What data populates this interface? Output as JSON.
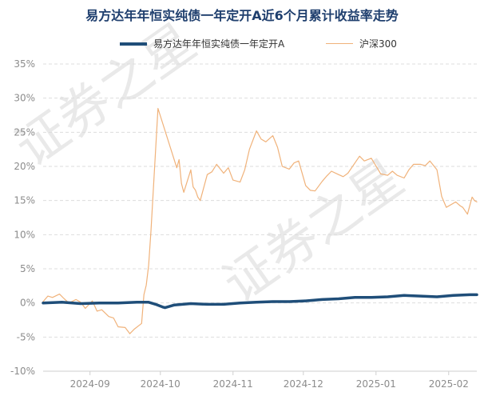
{
  "chart_data": {
    "type": "line",
    "title": "易方达年年恒实纯债一年定开A近6个月累计收益率走势",
    "xlabel": "",
    "ylabel": "",
    "ylim": [
      -10,
      35
    ],
    "yticks": [
      -10,
      -5,
      0,
      5,
      10,
      15,
      20,
      25,
      30,
      35
    ],
    "ytick_labels": [
      "-10%",
      "-5%",
      "0%",
      "5%",
      "10%",
      "15%",
      "20%",
      "25%",
      "30%",
      "35%"
    ],
    "x_categories": [
      "2024-08-12",
      "2025-02-13"
    ],
    "xticks": [
      "2024-09",
      "2024-10",
      "2024-11",
      "2024-12",
      "2025-01",
      "2025-02"
    ],
    "grid": "horizontal dashed",
    "legend_position": "top-center",
    "watermark": [
      "证券之星",
      "证券之星"
    ],
    "series": [
      {
        "name": "易方达年年恒实纯债一年定开A",
        "color": "#1f4e79",
        "points": [
          [
            "2024-08-12",
            0.0
          ],
          [
            "2024-08-20",
            0.1
          ],
          [
            "2024-08-28",
            -0.1
          ],
          [
            "2024-09-05",
            0.0
          ],
          [
            "2024-09-13",
            0.0
          ],
          [
            "2024-09-21",
            0.1
          ],
          [
            "2024-09-26",
            0.1
          ],
          [
            "2024-09-29",
            -0.2
          ],
          [
            "2024-10-02",
            -0.6
          ],
          [
            "2024-10-03",
            -0.7
          ],
          [
            "2024-10-07",
            -0.3
          ],
          [
            "2024-10-14",
            -0.1
          ],
          [
            "2024-10-21",
            -0.2
          ],
          [
            "2024-10-28",
            -0.2
          ],
          [
            "2024-11-04",
            0.0
          ],
          [
            "2024-11-11",
            0.1
          ],
          [
            "2024-11-18",
            0.2
          ],
          [
            "2024-11-25",
            0.2
          ],
          [
            "2024-12-02",
            0.3
          ],
          [
            "2024-12-09",
            0.5
          ],
          [
            "2024-12-16",
            0.6
          ],
          [
            "2024-12-23",
            0.8
          ],
          [
            "2024-12-30",
            0.8
          ],
          [
            "2025-01-06",
            0.9
          ],
          [
            "2025-01-13",
            1.1
          ],
          [
            "2025-01-20",
            1.0
          ],
          [
            "2025-01-27",
            0.9
          ],
          [
            "2025-02-03",
            1.1
          ],
          [
            "2025-02-10",
            1.2
          ],
          [
            "2025-02-13",
            1.2
          ]
        ]
      },
      {
        "name": "沪深300",
        "color": "#f0b27a",
        "points": [
          [
            "2024-08-12",
            0.2
          ],
          [
            "2024-08-14",
            1.0
          ],
          [
            "2024-08-16",
            0.8
          ],
          [
            "2024-08-19",
            1.3
          ],
          [
            "2024-08-21",
            0.6
          ],
          [
            "2024-08-23",
            0.0
          ],
          [
            "2024-08-26",
            0.5
          ],
          [
            "2024-08-28",
            0.1
          ],
          [
            "2024-08-30",
            -0.8
          ],
          [
            "2024-09-02",
            0.3
          ],
          [
            "2024-09-04",
            -1.2
          ],
          [
            "2024-09-06",
            -1.0
          ],
          [
            "2024-09-09",
            -2.0
          ],
          [
            "2024-09-11",
            -2.2
          ],
          [
            "2024-09-13",
            -3.5
          ],
          [
            "2024-09-16",
            -3.6
          ],
          [
            "2024-09-18",
            -4.5
          ],
          [
            "2024-09-20",
            -3.8
          ],
          [
            "2024-09-23",
            -3.0
          ],
          [
            "2024-09-24",
            1.2
          ],
          [
            "2024-09-25",
            2.6
          ],
          [
            "2024-09-26",
            5.5
          ],
          [
            "2024-09-27",
            10.5
          ],
          [
            "2024-09-30",
            28.5
          ],
          [
            "2024-10-08",
            19.8
          ],
          [
            "2024-10-09",
            21.0
          ],
          [
            "2024-10-10",
            17.5
          ],
          [
            "2024-10-11",
            16.2
          ],
          [
            "2024-10-14",
            19.5
          ],
          [
            "2024-10-15",
            17.0
          ],
          [
            "2024-10-16",
            16.5
          ],
          [
            "2024-10-17",
            15.5
          ],
          [
            "2024-10-18",
            15.0
          ],
          [
            "2024-10-21",
            18.8
          ],
          [
            "2024-10-23",
            19.2
          ],
          [
            "2024-10-25",
            20.3
          ],
          [
            "2024-10-28",
            19.0
          ],
          [
            "2024-10-30",
            19.8
          ],
          [
            "2024-11-01",
            18.0
          ],
          [
            "2024-11-04",
            17.7
          ],
          [
            "2024-11-06",
            19.5
          ],
          [
            "2024-11-08",
            22.5
          ],
          [
            "2024-11-11",
            25.2
          ],
          [
            "2024-11-13",
            24.0
          ],
          [
            "2024-11-15",
            23.6
          ],
          [
            "2024-11-18",
            24.5
          ],
          [
            "2024-11-20",
            22.8
          ],
          [
            "2024-11-22",
            20.0
          ],
          [
            "2024-11-25",
            19.6
          ],
          [
            "2024-11-27",
            20.5
          ],
          [
            "2024-11-29",
            20.8
          ],
          [
            "2024-12-02",
            17.2
          ],
          [
            "2024-12-04",
            16.5
          ],
          [
            "2024-12-06",
            16.4
          ],
          [
            "2024-12-09",
            17.8
          ],
          [
            "2024-12-11",
            18.6
          ],
          [
            "2024-12-13",
            19.3
          ],
          [
            "2024-12-16",
            18.8
          ],
          [
            "2024-12-18",
            18.5
          ],
          [
            "2024-12-20",
            19.0
          ],
          [
            "2024-12-23",
            20.5
          ],
          [
            "2024-12-25",
            21.5
          ],
          [
            "2024-12-27",
            20.8
          ],
          [
            "2024-12-30",
            21.2
          ],
          [
            "2025-01-02",
            19.5
          ],
          [
            "2025-01-03",
            18.9
          ],
          [
            "2025-01-06",
            18.7
          ],
          [
            "2025-01-08",
            19.3
          ],
          [
            "2025-01-10",
            18.7
          ],
          [
            "2025-01-13",
            18.3
          ],
          [
            "2025-01-15",
            19.5
          ],
          [
            "2025-01-17",
            20.3
          ],
          [
            "2025-01-20",
            20.3
          ],
          [
            "2025-01-22",
            20.1
          ],
          [
            "2025-01-24",
            20.8
          ],
          [
            "2025-01-27",
            19.5
          ],
          [
            "2025-01-29",
            15.6
          ],
          [
            "2025-01-31",
            14.0
          ],
          [
            "2025-02-04",
            14.8
          ],
          [
            "2025-02-05",
            14.5
          ],
          [
            "2025-02-06",
            14.2
          ],
          [
            "2025-02-07",
            14.0
          ],
          [
            "2025-02-09",
            13.0
          ],
          [
            "2025-02-11",
            15.5
          ],
          [
            "2025-02-12",
            15.0
          ],
          [
            "2025-02-13",
            14.8
          ]
        ]
      }
    ]
  }
}
